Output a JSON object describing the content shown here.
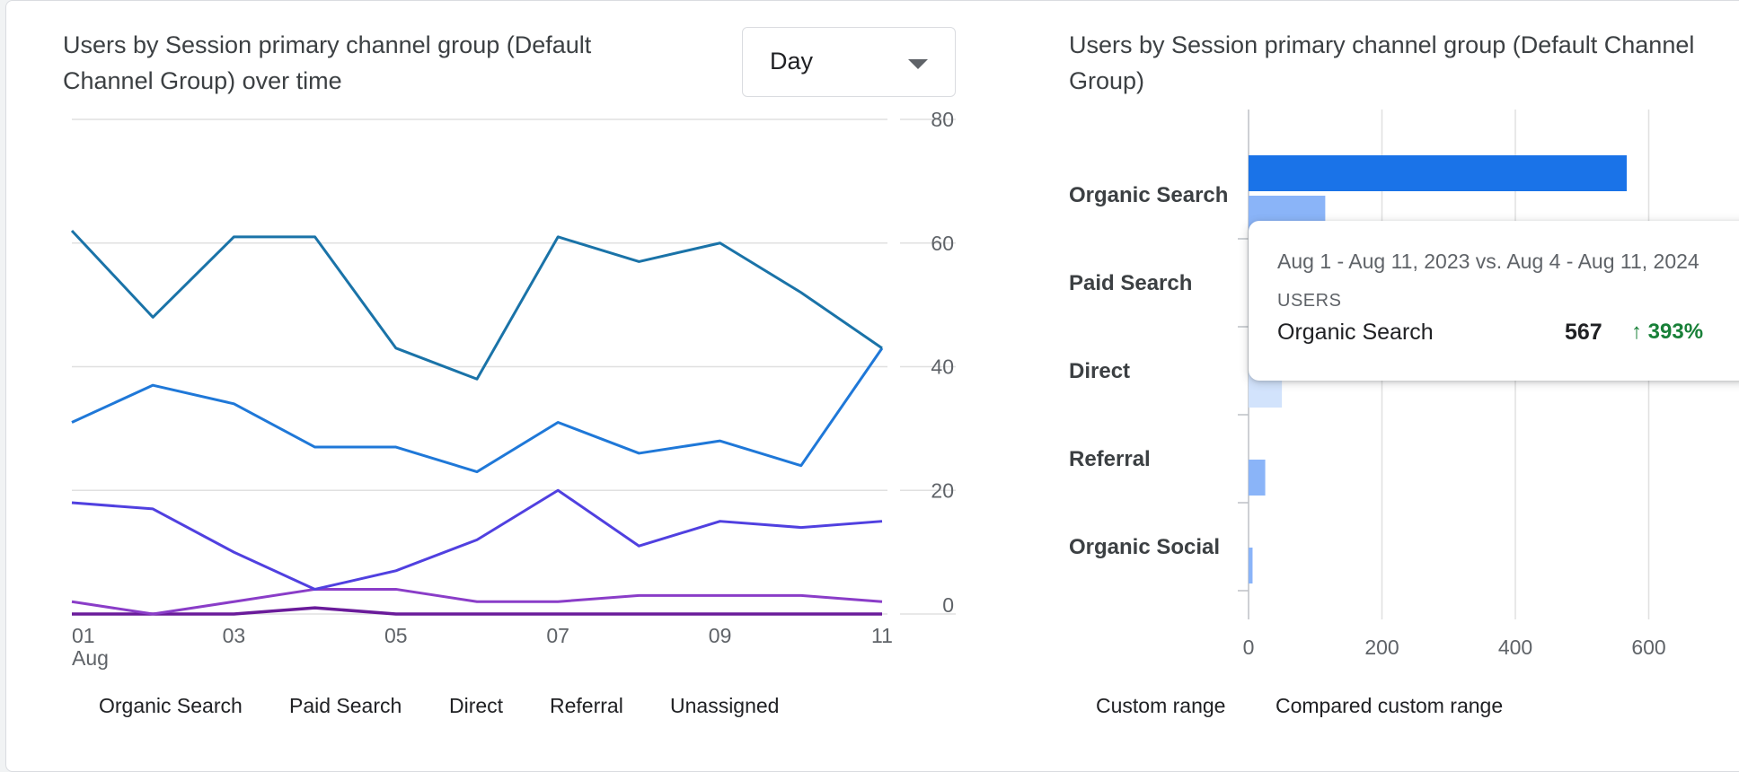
{
  "line_panel": {
    "title": "Users by Session primary channel group (Default Channel Group) over time",
    "dropdown_value": "Day"
  },
  "bar_panel": {
    "title": "Users by Session primary channel group (Default Channel Group)"
  },
  "tooltip": {
    "range": "Aug 1 - Aug 11, 2023 vs. Aug 4 - Aug 11, 2024",
    "metric": "USERS",
    "series": "Organic Search",
    "value": "567",
    "change": "393%"
  },
  "colors": {
    "organic_search": "#1a73a8",
    "paid_search": "#1f78d8",
    "direct": "#5040e0",
    "referral": "#8a3dc8",
    "unassigned": "#6a1b9a",
    "custom_range": "#1a73e8",
    "compared_range": "#8ab4f8",
    "change_up": "#188038"
  },
  "chart_data": [
    {
      "type": "line",
      "x": [
        "01",
        "02",
        "03",
        "04",
        "05",
        "06",
        "07",
        "08",
        "09",
        "10",
        "11"
      ],
      "x_tick_labels": [
        "01",
        "03",
        "05",
        "07",
        "09",
        "11"
      ],
      "x_sublabel": "Aug",
      "ylim": [
        0,
        80
      ],
      "y_ticks": [
        "0",
        "20",
        "40",
        "60",
        "80"
      ],
      "grid": true,
      "legend_position": "bottom",
      "series": [
        {
          "name": "Organic Search",
          "values": [
            62,
            48,
            61,
            61,
            43,
            38,
            61,
            57,
            60,
            52,
            43
          ]
        },
        {
          "name": "Paid Search",
          "values": [
            31,
            37,
            34,
            27,
            27,
            23,
            31,
            26,
            28,
            24,
            43
          ]
        },
        {
          "name": "Direct",
          "values": [
            18,
            17,
            10,
            4,
            7,
            12,
            20,
            11,
            15,
            14,
            15
          ]
        },
        {
          "name": "Referral",
          "values": [
            2,
            0,
            2,
            4,
            4,
            2,
            2,
            3,
            3,
            3,
            2
          ]
        },
        {
          "name": "Unassigned",
          "values": [
            0,
            0,
            0,
            1,
            0,
            0,
            0,
            0,
            0,
            0,
            0
          ]
        }
      ]
    },
    {
      "type": "bar",
      "orientation": "horizontal",
      "categories": [
        "Organic Search",
        "Paid Search",
        "Direct",
        "Referral",
        "Organic Social"
      ],
      "xlim": [
        0,
        700
      ],
      "x_ticks": [
        "0",
        "200",
        "400",
        "600"
      ],
      "grid": true,
      "legend_position": "bottom",
      "series": [
        {
          "name": "Custom range",
          "values": [
            567,
            0,
            0,
            0,
            0
          ]
        },
        {
          "name": "Compared custom range",
          "values": [
            115,
            0,
            50,
            25,
            6
          ]
        }
      ]
    }
  ]
}
